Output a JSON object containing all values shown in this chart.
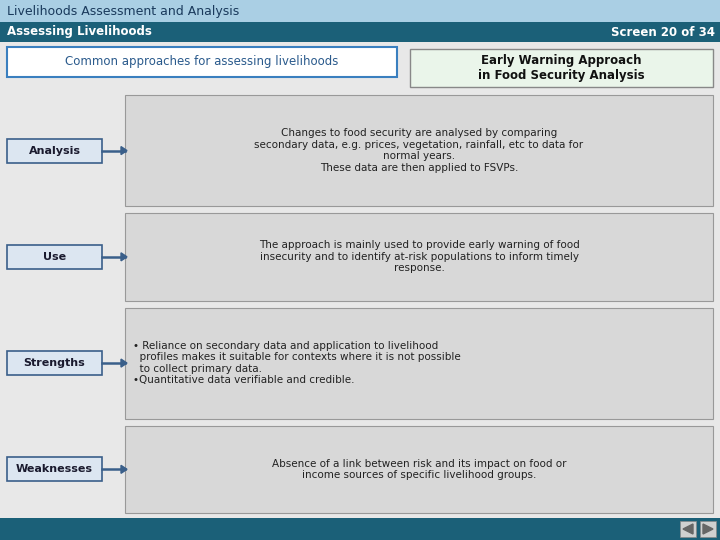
{
  "title": "Livelihoods Assessment and Analysis",
  "subtitle": "Assessing Livelihoods",
  "screen": "Screen 20 of 34",
  "header_bg": "#aacfe4",
  "subheader_bg": "#1b6078",
  "subheader_text": "#ffffff",
  "body_bg": "#e8e8e8",
  "common_approaches_text": "Common approaches for assessing livelihoods",
  "common_approaches_bg": "#ffffff",
  "common_approaches_border": "#3a7fbf",
  "early_warning_text": "Early Warning Approach\nin Food Security Analysis",
  "early_warning_bg": "#eaf5ea",
  "early_warning_border": "#888888",
  "label_bg": "#dce6f1",
  "label_border": "#3a5f8a",
  "label_text_color": "#1a1a2e",
  "arrow_color": "#3a5f8a",
  "content_bg": "#d8d8d8",
  "content_border": "#999999",
  "rows": [
    {
      "label": "Analysis",
      "text_center": "Changes to food security are analysed by comparing\nsecondary data, e.g. prices, vegetation, rainfall, etc to data for\nnormal years.\nThese data are then applied to FSVPs.",
      "align": "center"
    },
    {
      "label": "Use",
      "text_center": "The approach is mainly used to provide early warning of food\ninsecurity and to identify at-risk populations to inform timely\nresponse.",
      "align": "center"
    },
    {
      "label": "Strengths",
      "text_center": "• Reliance on secondary data and application to livelihood\n  profiles makes it suitable for contexts where it is not possible\n  to collect primary data.\n•Quantitative data verifiable and credible.",
      "align": "left"
    },
    {
      "label": "Weaknesses",
      "text_center": "Absence of a link between risk and its impact on food or\nincome sources of specific livelihood groups.",
      "align": "center"
    }
  ],
  "footer_bg": "#1b6078",
  "nav_bg": "#d0d0d0",
  "nav_arrow_color": "#666666"
}
